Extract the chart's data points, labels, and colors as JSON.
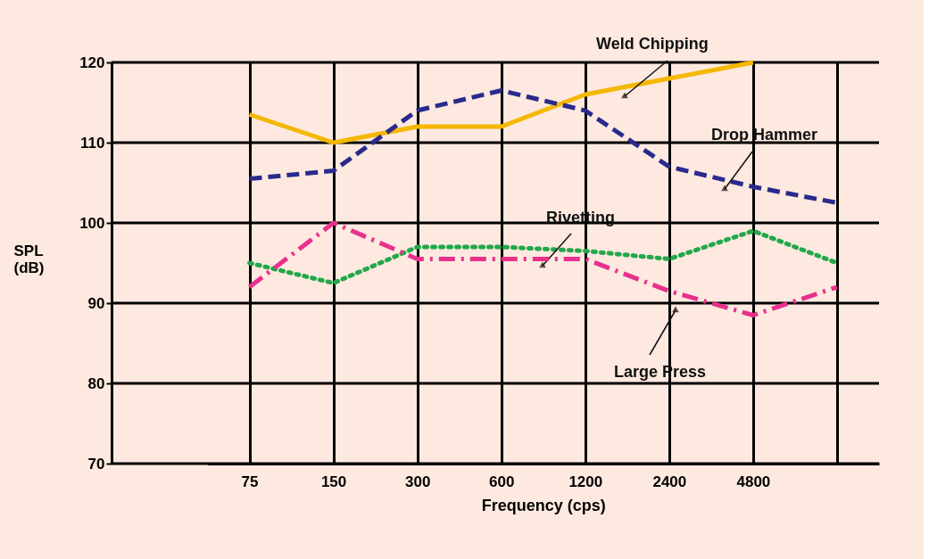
{
  "chart_data": {
    "type": "line",
    "xlabel": "Frequency (cps)",
    "ylabel": "SPL\n(dB)",
    "categories": [
      "75",
      "150",
      "300",
      "600",
      "1200",
      "2400",
      "4800",
      null
    ],
    "series": [
      {
        "name": "Weld Chipping",
        "color": "#f5b700",
        "line_style": "solid",
        "values": [
          113.5,
          110,
          112,
          112,
          116,
          118,
          120,
          null
        ]
      },
      {
        "name": "Drop Hammer",
        "color": "#2a2a8c",
        "line_style": "dashed",
        "values": [
          105.5,
          106.5,
          114,
          116.5,
          114,
          107,
          104.5,
          102.5
        ]
      },
      {
        "name": "Rivetting",
        "color": "#22a84a",
        "line_style": "dotted",
        "values": [
          95,
          92.5,
          97,
          97,
          96.5,
          95.5,
          99,
          95
        ]
      },
      {
        "name": "Large Press",
        "color": "#e8308c",
        "line_style": "dashdot",
        "values": [
          92,
          100,
          95.5,
          95.5,
          95.5,
          91.5,
          88.5,
          92
        ]
      }
    ],
    "ylim": [
      70,
      120
    ],
    "yticks": [
      70,
      80,
      90,
      100,
      110,
      120
    ],
    "grid": true,
    "marker": "none"
  }
}
